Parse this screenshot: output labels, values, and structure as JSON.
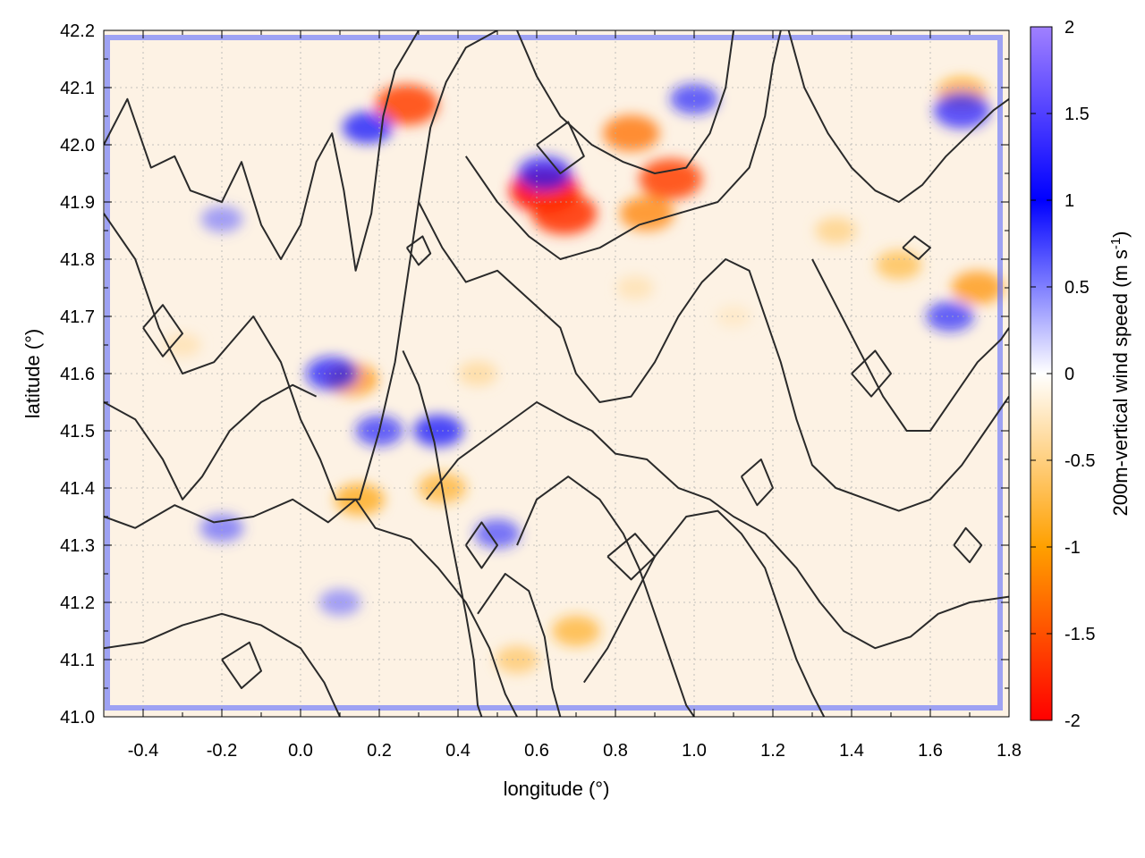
{
  "chart_data": {
    "type": "heatmap",
    "title": "",
    "xlabel": "longitude (°)",
    "ylabel": "latitude (°)",
    "xlim": [
      -0.5,
      1.8
    ],
    "ylim": [
      41.0,
      42.2
    ],
    "x_ticks": [
      -0.4,
      -0.2,
      0.0,
      0.2,
      0.4,
      0.6,
      0.8,
      1.0,
      1.2,
      1.4,
      1.6,
      1.8
    ],
    "x_tick_labels": [
      "-0.4",
      "-0.2",
      "0.0",
      "0.2",
      "0.4",
      "0.6",
      "0.8",
      "1.0",
      "1.2",
      "1.4",
      "1.6",
      "1.8"
    ],
    "y_ticks": [
      41.0,
      41.1,
      41.2,
      41.3,
      41.4,
      41.5,
      41.6,
      41.7,
      41.8,
      41.9,
      42.0,
      42.1,
      42.2
    ],
    "y_tick_labels": [
      "41.0",
      "41.1",
      "41.2",
      "41.3",
      "41.4",
      "41.5",
      "41.6",
      "41.7",
      "41.8",
      "41.9",
      "42.0",
      "42.1",
      "42.2"
    ],
    "grid": true,
    "colorbar": {
      "label": "200m-vertical wind speed (m s",
      "label_sup": "-1",
      "label_end": ")",
      "range": [
        -2,
        2
      ],
      "ticks": [
        2,
        1.5,
        1,
        0.5,
        0,
        -0.5,
        -1,
        -1.5,
        -2
      ],
      "tick_labels": [
        "2",
        "1.5",
        "1",
        "0.5",
        "0",
        "-0.5",
        "-1",
        "-1.5",
        "-2"
      ],
      "colors": [
        {
          "value": -2.0,
          "color": "#ff0000"
        },
        {
          "value": -1.0,
          "color": "#ffa000"
        },
        {
          "value": 0.0,
          "color": "#ffffff"
        },
        {
          "value": 1.0,
          "color": "#0000ff"
        },
        {
          "value": 2.0,
          "color": "#a080ff"
        }
      ]
    },
    "hotspots": [
      {
        "lon": 0.62,
        "lat": 41.92,
        "w": -1.9
      },
      {
        "lon": 0.67,
        "lat": 41.88,
        "w": -1.7
      },
      {
        "lon": 0.94,
        "lat": 41.94,
        "w": -1.6
      },
      {
        "lon": 0.84,
        "lat": 42.02,
        "w": -1.3
      },
      {
        "lon": 0.27,
        "lat": 42.07,
        "w": -1.6
      },
      {
        "lon": 1.72,
        "lat": 41.75,
        "w": -1.1
      },
      {
        "lon": 1.52,
        "lat": 41.79,
        "w": -0.8
      },
      {
        "lon": 0.13,
        "lat": 41.59,
        "w": -1.1
      },
      {
        "lon": 0.15,
        "lat": 41.38,
        "w": -1.0
      },
      {
        "lon": 0.36,
        "lat": 41.4,
        "w": -0.9
      },
      {
        "lon": 0.88,
        "lat": 41.88,
        "w": -1.2
      },
      {
        "lon": 1.68,
        "lat": 42.09,
        "w": -1.0
      },
      {
        "lon": 0.7,
        "lat": 41.15,
        "w": -0.9
      },
      {
        "lon": 0.55,
        "lat": 41.1,
        "w": -0.7
      },
      {
        "lon": 1.36,
        "lat": 41.85,
        "w": -0.6
      },
      {
        "lon": 0.85,
        "lat": 41.75,
        "w": -0.4
      },
      {
        "lon": 0.45,
        "lat": 41.6,
        "w": -0.5
      },
      {
        "lon": -0.3,
        "lat": 41.65,
        "w": -0.4
      },
      {
        "lon": 0.35,
        "lat": 41.5,
        "w": 1.0
      },
      {
        "lon": 0.2,
        "lat": 41.5,
        "w": 0.9
      },
      {
        "lon": 0.08,
        "lat": 41.6,
        "w": 1.1
      },
      {
        "lon": 0.62,
        "lat": 41.95,
        "w": 1.2
      },
      {
        "lon": 1.68,
        "lat": 42.06,
        "w": 1.3
      },
      {
        "lon": 1.0,
        "lat": 42.08,
        "w": 0.9
      },
      {
        "lon": 0.17,
        "lat": 42.03,
        "w": 1.0
      },
      {
        "lon": 1.65,
        "lat": 41.7,
        "w": 0.9
      },
      {
        "lon": 0.5,
        "lat": 41.32,
        "w": 0.8
      },
      {
        "lon": -0.2,
        "lat": 41.33,
        "w": 0.7
      },
      {
        "lon": -0.2,
        "lat": 41.87,
        "w": 0.6
      },
      {
        "lon": 0.1,
        "lat": 41.2,
        "w": 0.6
      },
      {
        "lon": 1.1,
        "lat": 41.7,
        "w": -0.3
      }
    ],
    "contour_lines": [
      [
        [
          -0.5,
          42.0
        ],
        [
          -0.44,
          42.08
        ],
        [
          -0.38,
          41.96
        ],
        [
          -0.32,
          41.98
        ],
        [
          -0.28,
          41.92
        ],
        [
          -0.2,
          41.9
        ],
        [
          -0.15,
          41.97
        ],
        [
          -0.1,
          41.86
        ],
        [
          -0.05,
          41.8
        ],
        [
          0.0,
          41.86
        ],
        [
          0.04,
          41.97
        ],
        [
          0.08,
          42.02
        ],
        [
          0.11,
          41.92
        ],
        [
          0.14,
          41.78
        ],
        [
          0.18,
          41.88
        ],
        [
          0.21,
          42.05
        ],
        [
          0.24,
          42.13
        ],
        [
          0.3,
          42.2
        ]
      ],
      [
        [
          -0.5,
          41.88
        ],
        [
          -0.42,
          41.8
        ],
        [
          -0.36,
          41.68
        ],
        [
          -0.3,
          41.6
        ],
        [
          -0.22,
          41.62
        ],
        [
          -0.12,
          41.7
        ],
        [
          -0.05,
          41.62
        ],
        [
          0.0,
          41.52
        ],
        [
          0.05,
          41.45
        ],
        [
          0.09,
          41.38
        ],
        [
          0.15,
          41.38
        ],
        [
          0.2,
          41.5
        ],
        [
          0.24,
          41.62
        ],
        [
          0.27,
          41.76
        ],
        [
          0.3,
          41.9
        ],
        [
          0.33,
          42.03
        ],
        [
          0.37,
          42.11
        ],
        [
          0.42,
          42.17
        ],
        [
          0.5,
          42.2
        ]
      ],
      [
        [
          -0.5,
          41.35
        ],
        [
          -0.42,
          41.33
        ],
        [
          -0.32,
          41.37
        ],
        [
          -0.22,
          41.34
        ],
        [
          -0.12,
          41.35
        ],
        [
          -0.02,
          41.38
        ],
        [
          0.07,
          41.34
        ],
        [
          0.14,
          41.38
        ],
        [
          0.19,
          41.33
        ],
        [
          0.28,
          41.31
        ],
        [
          0.35,
          41.26
        ],
        [
          0.42,
          41.2
        ],
        [
          0.48,
          41.12
        ],
        [
          0.52,
          41.04
        ],
        [
          0.55,
          41.0
        ]
      ],
      [
        [
          -0.5,
          41.12
        ],
        [
          -0.4,
          41.13
        ],
        [
          -0.3,
          41.16
        ],
        [
          -0.2,
          41.18
        ],
        [
          -0.1,
          41.16
        ],
        [
          0.0,
          41.12
        ],
        [
          0.06,
          41.06
        ],
        [
          0.1,
          41.0
        ]
      ],
      [
        [
          0.32,
          41.38
        ],
        [
          0.4,
          41.45
        ],
        [
          0.5,
          41.5
        ],
        [
          0.6,
          41.55
        ],
        [
          0.68,
          41.52
        ],
        [
          0.74,
          41.5
        ],
        [
          0.8,
          41.46
        ],
        [
          0.88,
          41.45
        ],
        [
          0.96,
          41.4
        ],
        [
          1.04,
          41.38
        ],
        [
          1.1,
          41.35
        ],
        [
          1.18,
          41.32
        ],
        [
          1.26,
          41.26
        ],
        [
          1.32,
          41.2
        ],
        [
          1.38,
          41.15
        ],
        [
          1.46,
          41.12
        ],
        [
          1.55,
          41.14
        ],
        [
          1.62,
          41.18
        ],
        [
          1.7,
          41.2
        ],
        [
          1.8,
          41.21
        ]
      ],
      [
        [
          0.55,
          41.3
        ],
        [
          0.6,
          41.38
        ],
        [
          0.68,
          41.42
        ],
        [
          0.76,
          41.38
        ],
        [
          0.82,
          41.32
        ],
        [
          0.86,
          41.26
        ],
        [
          0.9,
          41.18
        ],
        [
          0.94,
          41.1
        ],
        [
          0.98,
          41.02
        ],
        [
          1.0,
          41.0
        ]
      ],
      [
        [
          0.72,
          41.06
        ],
        [
          0.78,
          41.12
        ],
        [
          0.84,
          41.2
        ],
        [
          0.9,
          41.28
        ],
        [
          0.98,
          41.35
        ],
        [
          1.06,
          41.36
        ],
        [
          1.12,
          41.32
        ],
        [
          1.18,
          41.26
        ],
        [
          1.22,
          41.18
        ],
        [
          1.26,
          41.1
        ],
        [
          1.3,
          41.04
        ],
        [
          1.33,
          41.0
        ]
      ],
      [
        [
          0.45,
          41.18
        ],
        [
          0.52,
          41.25
        ],
        [
          0.58,
          41.22
        ],
        [
          0.62,
          41.14
        ],
        [
          0.64,
          41.05
        ],
        [
          0.66,
          41.0
        ]
      ],
      [
        [
          0.55,
          42.2
        ],
        [
          0.6,
          42.12
        ],
        [
          0.66,
          42.05
        ],
        [
          0.74,
          42.0
        ],
        [
          0.82,
          41.97
        ],
        [
          0.9,
          41.95
        ],
        [
          0.98,
          41.96
        ],
        [
          1.04,
          42.02
        ],
        [
          1.08,
          42.1
        ],
        [
          1.1,
          42.2
        ]
      ],
      [
        [
          0.42,
          41.98
        ],
        [
          0.5,
          41.9
        ],
        [
          0.58,
          41.84
        ],
        [
          0.66,
          41.8
        ],
        [
          0.76,
          41.82
        ],
        [
          0.86,
          41.86
        ],
        [
          0.96,
          41.88
        ],
        [
          1.06,
          41.9
        ],
        [
          1.14,
          41.96
        ],
        [
          1.18,
          42.05
        ],
        [
          1.2,
          42.14
        ],
        [
          1.22,
          42.2
        ]
      ],
      [
        [
          0.3,
          41.9
        ],
        [
          0.36,
          41.82
        ],
        [
          0.42,
          41.76
        ],
        [
          0.5,
          41.78
        ],
        [
          0.58,
          41.73
        ],
        [
          0.66,
          41.68
        ],
        [
          0.7,
          41.6
        ],
        [
          0.76,
          41.55
        ],
        [
          0.84,
          41.56
        ],
        [
          0.9,
          41.62
        ],
        [
          0.96,
          41.7
        ],
        [
          1.02,
          41.76
        ],
        [
          1.08,
          41.8
        ],
        [
          1.14,
          41.78
        ],
        [
          1.18,
          41.7
        ],
        [
          1.22,
          41.62
        ],
        [
          1.26,
          41.52
        ],
        [
          1.3,
          41.44
        ],
        [
          1.36,
          41.4
        ],
        [
          1.44,
          41.38
        ],
        [
          1.52,
          41.36
        ],
        [
          1.6,
          41.38
        ],
        [
          1.68,
          41.44
        ],
        [
          1.74,
          41.5
        ],
        [
          1.8,
          41.56
        ]
      ],
      [
        [
          1.24,
          42.2
        ],
        [
          1.28,
          42.1
        ],
        [
          1.34,
          42.02
        ],
        [
          1.4,
          41.96
        ],
        [
          1.46,
          41.92
        ],
        [
          1.52,
          41.9
        ],
        [
          1.58,
          41.93
        ],
        [
          1.64,
          41.98
        ],
        [
          1.7,
          42.02
        ],
        [
          1.76,
          42.06
        ],
        [
          1.8,
          42.08
        ]
      ],
      [
        [
          1.3,
          41.8
        ],
        [
          1.36,
          41.72
        ],
        [
          1.42,
          41.64
        ],
        [
          1.48,
          41.56
        ],
        [
          1.54,
          41.5
        ],
        [
          1.6,
          41.5
        ],
        [
          1.66,
          41.56
        ],
        [
          1.72,
          41.62
        ],
        [
          1.78,
          41.66
        ],
        [
          1.8,
          41.68
        ]
      ],
      [
        [
          -0.5,
          41.55
        ],
        [
          -0.42,
          41.52
        ],
        [
          -0.35,
          41.45
        ],
        [
          -0.3,
          41.38
        ],
        [
          -0.25,
          41.42
        ],
        [
          -0.18,
          41.5
        ],
        [
          -0.1,
          41.55
        ],
        [
          -0.02,
          41.58
        ],
        [
          0.04,
          41.56
        ]
      ],
      [
        [
          0.26,
          41.64
        ],
        [
          0.3,
          41.58
        ],
        [
          0.34,
          41.48
        ],
        [
          0.36,
          41.4
        ],
        [
          0.38,
          41.32
        ],
        [
          0.4,
          41.25
        ],
        [
          0.42,
          41.18
        ],
        [
          0.44,
          41.1
        ],
        [
          0.45,
          41.02
        ],
        [
          0.46,
          41.0
        ]
      ]
    ],
    "closed_contours": [
      [
        [
          0.27,
          41.82
        ],
        [
          0.3,
          41.79
        ],
        [
          0.33,
          41.81
        ],
        [
          0.31,
          41.84
        ],
        [
          0.27,
          41.82
        ]
      ],
      [
        [
          1.53,
          41.82
        ],
        [
          1.57,
          41.8
        ],
        [
          1.6,
          41.82
        ],
        [
          1.56,
          41.84
        ],
        [
          1.53,
          41.82
        ]
      ],
      [
        [
          -0.4,
          41.68
        ],
        [
          -0.35,
          41.63
        ],
        [
          -0.3,
          41.67
        ],
        [
          -0.35,
          41.72
        ],
        [
          -0.4,
          41.68
        ]
      ],
      [
        [
          1.12,
          41.42
        ],
        [
          1.16,
          41.37
        ],
        [
          1.2,
          41.4
        ],
        [
          1.17,
          41.45
        ],
        [
          1.12,
          41.42
        ]
      ],
      [
        [
          1.4,
          41.6
        ],
        [
          1.45,
          41.56
        ],
        [
          1.5,
          41.6
        ],
        [
          1.46,
          41.64
        ],
        [
          1.4,
          41.6
        ]
      ],
      [
        [
          -0.2,
          41.1
        ],
        [
          -0.15,
          41.05
        ],
        [
          -0.1,
          41.08
        ],
        [
          -0.13,
          41.13
        ],
        [
          -0.2,
          41.1
        ]
      ],
      [
        [
          0.78,
          41.28
        ],
        [
          0.84,
          41.24
        ],
        [
          0.9,
          41.28
        ],
        [
          0.85,
          41.32
        ],
        [
          0.78,
          41.28
        ]
      ],
      [
        [
          1.66,
          41.3
        ],
        [
          1.7,
          41.27
        ],
        [
          1.73,
          41.3
        ],
        [
          1.69,
          41.33
        ],
        [
          1.66,
          41.3
        ]
      ],
      [
        [
          0.6,
          42.0
        ],
        [
          0.66,
          41.95
        ],
        [
          0.72,
          41.98
        ],
        [
          0.68,
          42.04
        ],
        [
          0.6,
          42.0
        ]
      ],
      [
        [
          0.42,
          41.3
        ],
        [
          0.46,
          41.26
        ],
        [
          0.5,
          41.3
        ],
        [
          0.46,
          41.34
        ],
        [
          0.42,
          41.3
        ]
      ]
    ]
  }
}
